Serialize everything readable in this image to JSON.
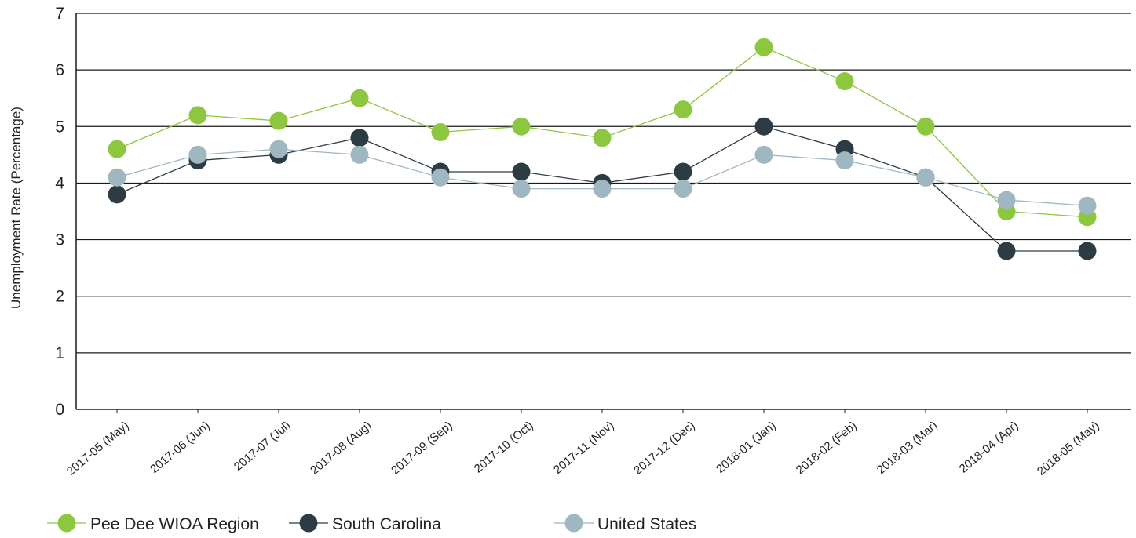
{
  "chart_data": {
    "type": "line",
    "title": "",
    "xlabel": "",
    "ylabel": "Unemployment Rate (Percentage)",
    "ylim": [
      0,
      7
    ],
    "yticks": [
      0,
      1,
      2,
      3,
      4,
      5,
      6,
      7
    ],
    "grid": true,
    "legend_position": "bottom-left",
    "categories": [
      "2017-05 (May)",
      "2017-06 (Jun)",
      "2017-07 (Jul)",
      "2017-08 (Aug)",
      "2017-09 (Sep)",
      "2017-10 (Oct)",
      "2017-11 (Nov)",
      "2017-12 (Dec)",
      "2018-01 (Jan)",
      "2018-02 (Feb)",
      "2018-03 (Mar)",
      "2018-04 (Apr)",
      "2018-05 (May)"
    ],
    "series": [
      {
        "name": "Pee Dee WIOA Region",
        "color": "#8dc63f",
        "values": [
          4.6,
          5.2,
          5.1,
          5.5,
          4.9,
          5.0,
          4.8,
          5.3,
          6.4,
          5.8,
          5.0,
          3.5,
          3.4
        ]
      },
      {
        "name": "South Carolina",
        "color": "#2d3c44",
        "values": [
          3.8,
          4.4,
          4.5,
          4.8,
          4.2,
          4.2,
          4.0,
          4.2,
          5.0,
          4.6,
          4.1,
          2.8,
          2.8
        ]
      },
      {
        "name": "United States",
        "color": "#9fb7c0",
        "values": [
          4.1,
          4.5,
          4.6,
          4.5,
          4.1,
          3.9,
          3.9,
          3.9,
          4.5,
          4.4,
          4.1,
          3.7,
          3.6
        ]
      }
    ]
  }
}
